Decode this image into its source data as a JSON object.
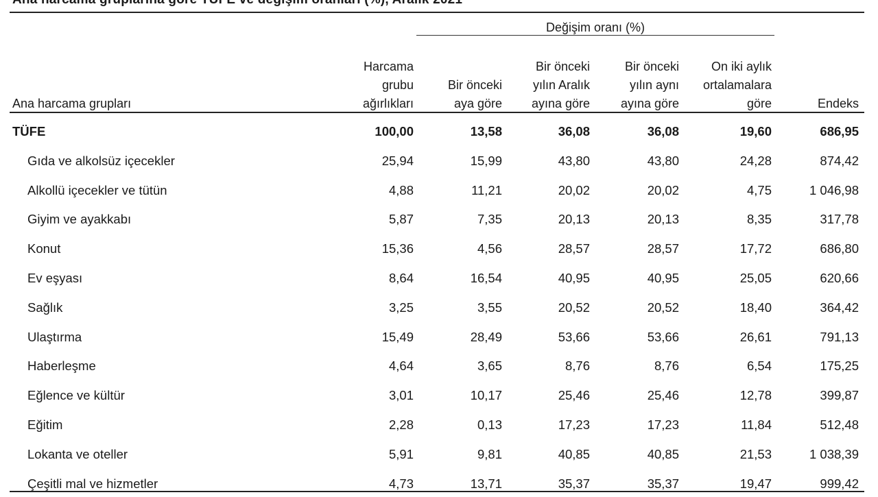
{
  "title": "Ana harcama gruplarına göre TÜFE ve değişim oranları (%), Aralık 2021",
  "group_header": "Değişim oranı (%)",
  "columns": {
    "name": "Ana harcama grupları",
    "weight": "Harcama\ngrubu\nağırlıkları",
    "prev_month": "Bir önceki\naya göre",
    "prev_year_dec": "Bir önceki\nyılın Aralık\nayına göre",
    "prev_year_same": "Bir önceki\nyılın aynı\nayına göre",
    "twelve_month_avg": "On iki aylık\nortalamalara\ngöre",
    "index": "Endeks"
  },
  "rows": [
    {
      "name": "TÜFE",
      "weight": "100,00",
      "prev_month": "13,58",
      "prev_year_dec": "36,08",
      "prev_year_same": "36,08",
      "twelve_month_avg": "19,60",
      "index": "686,95"
    },
    {
      "name": "Gıda ve alkolsüz içecekler",
      "weight": "25,94",
      "prev_month": "15,99",
      "prev_year_dec": "43,80",
      "prev_year_same": "43,80",
      "twelve_month_avg": "24,28",
      "index": "874,42"
    },
    {
      "name": "Alkollü içecekler ve tütün",
      "weight": "4,88",
      "prev_month": "11,21",
      "prev_year_dec": "20,02",
      "prev_year_same": "20,02",
      "twelve_month_avg": "4,75",
      "index": "1 046,98"
    },
    {
      "name": "Giyim ve ayakkabı",
      "weight": "5,87",
      "prev_month": "7,35",
      "prev_year_dec": "20,13",
      "prev_year_same": "20,13",
      "twelve_month_avg": "8,35",
      "index": "317,78"
    },
    {
      "name": "Konut",
      "weight": "15,36",
      "prev_month": "4,56",
      "prev_year_dec": "28,57",
      "prev_year_same": "28,57",
      "twelve_month_avg": "17,72",
      "index": "686,80"
    },
    {
      "name": "Ev eşyası",
      "weight": "8,64",
      "prev_month": "16,54",
      "prev_year_dec": "40,95",
      "prev_year_same": "40,95",
      "twelve_month_avg": "25,05",
      "index": "620,66"
    },
    {
      "name": "Sağlık",
      "weight": "3,25",
      "prev_month": "3,55",
      "prev_year_dec": "20,52",
      "prev_year_same": "20,52",
      "twelve_month_avg": "18,40",
      "index": "364,42"
    },
    {
      "name": "Ulaştırma",
      "weight": "15,49",
      "prev_month": "28,49",
      "prev_year_dec": "53,66",
      "prev_year_same": "53,66",
      "twelve_month_avg": "26,61",
      "index": "791,13"
    },
    {
      "name": "Haberleşme",
      "weight": "4,64",
      "prev_month": "3,65",
      "prev_year_dec": "8,76",
      "prev_year_same": "8,76",
      "twelve_month_avg": "6,54",
      "index": "175,25"
    },
    {
      "name": "Eğlence ve kültür",
      "weight": "3,01",
      "prev_month": "10,17",
      "prev_year_dec": "25,46",
      "prev_year_same": "25,46",
      "twelve_month_avg": "12,78",
      "index": "399,87"
    },
    {
      "name": "Eğitim",
      "weight": "2,28",
      "prev_month": "0,13",
      "prev_year_dec": "17,23",
      "prev_year_same": "17,23",
      "twelve_month_avg": "11,84",
      "index": "512,48"
    },
    {
      "name": "Lokanta ve oteller",
      "weight": "5,91",
      "prev_month": "9,81",
      "prev_year_dec": "40,85",
      "prev_year_same": "40,85",
      "twelve_month_avg": "21,53",
      "index": "1 038,39"
    },
    {
      "name": "Çeşitli mal ve hizmetler",
      "weight": "4,73",
      "prev_month": "13,71",
      "prev_year_dec": "35,37",
      "prev_year_same": "35,37",
      "twelve_month_avg": "19,47",
      "index": "999,42"
    }
  ]
}
